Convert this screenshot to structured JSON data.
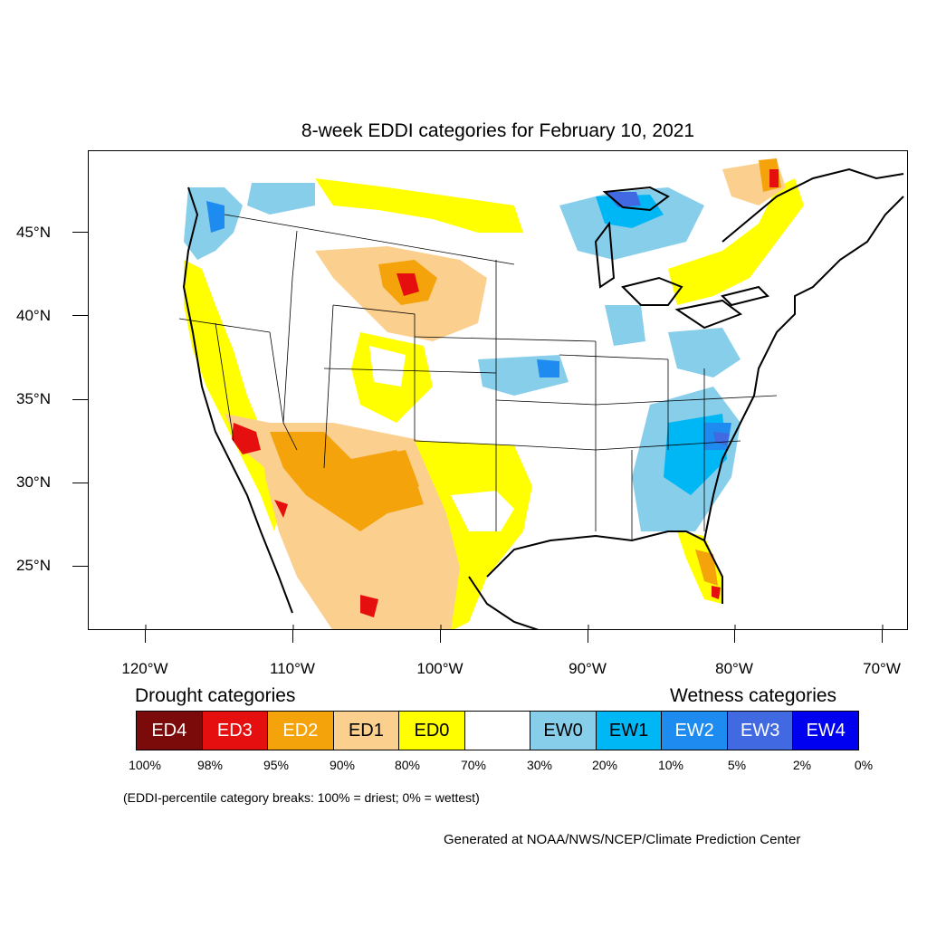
{
  "title": "8-week EDDI categories for February 10, 2021",
  "lat_labels": [
    "45°N",
    "40°N",
    "35°N",
    "30°N",
    "25°N"
  ],
  "lon_labels": [
    "120°W",
    "110°W",
    "100°W",
    "90°W",
    "80°W",
    "70°W"
  ],
  "drought_title": "Drought categories",
  "wetness_title": "Wetness categories",
  "legend": [
    {
      "label": "ED4",
      "color": "#7b0a0a",
      "text_color": "#ffffff"
    },
    {
      "label": "ED3",
      "color": "#e60f0f",
      "text_color": "#ffffff"
    },
    {
      "label": "ED2",
      "color": "#f5a30a",
      "text_color": "#ffffff"
    },
    {
      "label": "ED1",
      "color": "#fbcf8e",
      "text_color": "#000000"
    },
    {
      "label": "ED0",
      "color": "#ffff00",
      "text_color": "#000000"
    },
    {
      "label": "",
      "color": "#ffffff",
      "text_color": "#000000"
    },
    {
      "label": "EW0",
      "color": "#87ceeb",
      "text_color": "#000000"
    },
    {
      "label": "EW1",
      "color": "#00b7f5",
      "text_color": "#000000"
    },
    {
      "label": "EW2",
      "color": "#1e8bf0",
      "text_color": "#ffffff"
    },
    {
      "label": "EW3",
      "color": "#4169e1",
      "text_color": "#ffffff"
    },
    {
      "label": "EW4",
      "color": "#0000f0",
      "text_color": "#ffffff"
    }
  ],
  "breaks": [
    "100%",
    "98%",
    "95%",
    "90%",
    "80%",
    "70%",
    "30%",
    "20%",
    "10%",
    "5%",
    "2%",
    "0%"
  ],
  "note": "(EDDI-percentile category breaks: 100% = driest; 0% = wettest)",
  "credit": "Generated at NOAA/NWS/NCEP/Climate Prediction Center"
}
